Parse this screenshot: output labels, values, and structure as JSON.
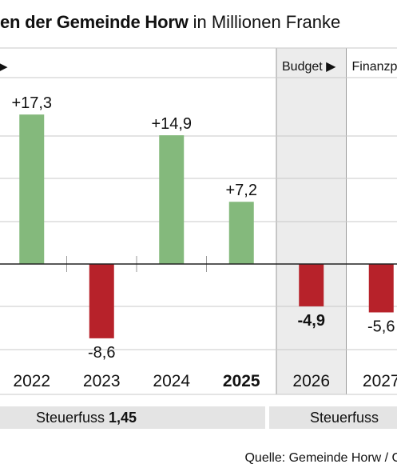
{
  "header": {
    "title_bold": "en der Gemeinde Horw",
    "title_rest": "in Millionen Franke"
  },
  "chart_data": {
    "type": "bar",
    "categories": [
      "2022",
      "2023",
      "2024",
      "2025",
      "2026",
      "2027"
    ],
    "values": [
      17.3,
      -8.6,
      14.9,
      7.2,
      -4.9,
      -5.6
    ],
    "data_labels": [
      "+17,3",
      "-8,6",
      "+14,9",
      "+7,2",
      "-4,9",
      "-5,6"
    ],
    "bold_labels": [
      false,
      false,
      false,
      false,
      true,
      false
    ],
    "bold_categories": [
      false,
      false,
      false,
      true,
      false,
      false
    ],
    "bar_colors": [
      "#84b97c",
      "#b7222a",
      "#84b97c",
      "#84b97c",
      "#b7222a",
      "#b7222a"
    ],
    "section_labels": [
      "Budget ▶",
      "Finanzp"
    ],
    "leading_arrow": "▶",
    "budget_shading_color": "#ececec",
    "steuerfuss": [
      {
        "label": "Steuerfuss",
        "value": "1,45"
      },
      {
        "label": "Steuerfuss",
        "value": ""
      }
    ],
    "grid": true
  },
  "footer": {
    "source": "Quelle: Gemeinde Horw / G"
  }
}
